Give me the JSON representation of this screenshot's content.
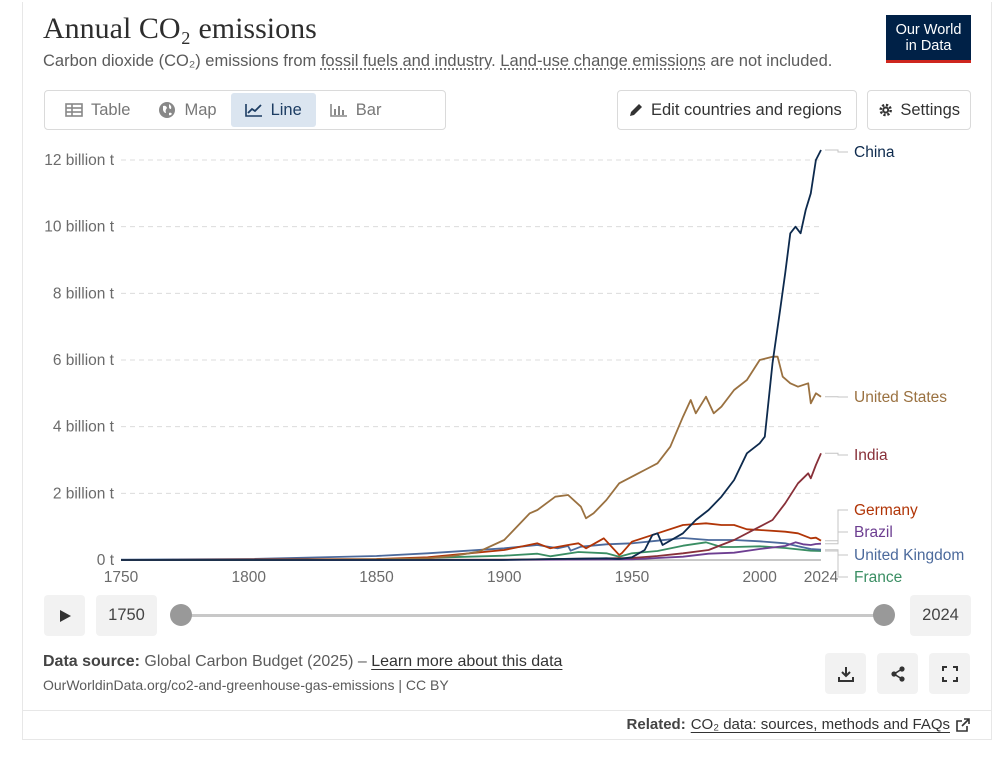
{
  "header": {
    "title": "Annual CO₂ emissions",
    "subtitle_prefix": "Carbon dioxide (CO₂) emissions from ",
    "subtitle_link1": "fossil fuels and industry",
    "subtitle_mid": ". ",
    "subtitle_link2": "Land-use change emissions",
    "subtitle_suffix": " are not included.",
    "logo_line1": "Our World",
    "logo_line2": "in Data"
  },
  "tabs": [
    {
      "label": "Table",
      "icon": "table-icon"
    },
    {
      "label": "Map",
      "icon": "globe-icon"
    },
    {
      "label": "Line",
      "icon": "line-chart-icon",
      "active": true
    },
    {
      "label": "Bar",
      "icon": "bar-chart-icon"
    }
  ],
  "toolbar": {
    "edit_label": "Edit countries and regions",
    "settings_label": "Settings"
  },
  "timeline": {
    "start_year": "1750",
    "end_year": "2024"
  },
  "footer": {
    "source_label": "Data source:",
    "source_text": " Global Carbon Budget (2025) – ",
    "source_link": "Learn more about this data",
    "url_text": "OurWorldinData.org/co2-and-greenhouse-gas-emissions | CC BY",
    "related_label": "Related:",
    "related_link": "CO₂ data: sources, methods and FAQs"
  },
  "colors": {
    "accent": "#1d3d63",
    "logo_bg": "#002147",
    "logo_bar": "#ce261e"
  },
  "chart_data": {
    "type": "line",
    "title": "Annual CO₂ emissions",
    "xlabel": "",
    "ylabel": "",
    "xlim": [
      1750,
      2024
    ],
    "ylim": [
      0,
      12
    ],
    "y_unit": "billion t",
    "yticks": [
      {
        "value": 0,
        "label": "0 t"
      },
      {
        "value": 2,
        "label": "2 billion t"
      },
      {
        "value": 4,
        "label": "4 billion t"
      },
      {
        "value": 6,
        "label": "6 billion t"
      },
      {
        "value": 8,
        "label": "8 billion t"
      },
      {
        "value": 10,
        "label": "10 billion t"
      },
      {
        "value": 12,
        "label": "12 billion t"
      }
    ],
    "xticks": [
      "1750",
      "1800",
      "1850",
      "1900",
      "1950",
      "2000",
      "2024"
    ],
    "grid": "horizontal dashed",
    "legend": "end-of-line labels at right",
    "series": [
      {
        "name": "China",
        "color": "#0d2a4d",
        "x": [
          1750,
          1899,
          1920,
          1930,
          1940,
          1945,
          1950,
          1955,
          1958,
          1960,
          1962,
          1970,
          1975,
          1980,
          1985,
          1990,
          1995,
          2000,
          2002,
          2005,
          2008,
          2010,
          2012,
          2014,
          2016,
          2018,
          2020,
          2022,
          2024
        ],
        "y": [
          0,
          0,
          0.03,
          0.04,
          0.05,
          0.03,
          0.08,
          0.3,
          0.75,
          0.8,
          0.45,
          0.8,
          1.2,
          1.5,
          1.9,
          2.4,
          3.2,
          3.5,
          3.7,
          5.9,
          7.5,
          8.6,
          9.8,
          10.0,
          9.8,
          10.5,
          11.0,
          12.0,
          12.3
        ]
      },
      {
        "name": "United States",
        "color": "#9a7140",
        "x": [
          1750,
          1800,
          1850,
          1870,
          1880,
          1890,
          1900,
          1910,
          1913,
          1920,
          1925,
          1930,
          1932,
          1935,
          1940,
          1945,
          1950,
          1955,
          1960,
          1965,
          1970,
          1973,
          1975,
          1979,
          1982,
          1985,
          1990,
          1995,
          2000,
          2005,
          2007,
          2009,
          2012,
          2015,
          2019,
          2020,
          2022,
          2024
        ],
        "y": [
          0,
          0.001,
          0.02,
          0.05,
          0.12,
          0.25,
          0.6,
          1.4,
          1.5,
          1.9,
          1.95,
          1.6,
          1.25,
          1.4,
          1.8,
          2.3,
          2.5,
          2.7,
          2.9,
          3.4,
          4.3,
          4.8,
          4.4,
          4.9,
          4.4,
          4.6,
          5.1,
          5.4,
          6.0,
          6.1,
          6.1,
          5.5,
          5.3,
          5.2,
          5.3,
          4.7,
          5.0,
          4.9
        ]
      },
      {
        "name": "India",
        "color": "#883039",
        "x": [
          1750,
          1900,
          1950,
          1960,
          1970,
          1980,
          1990,
          2000,
          2005,
          2010,
          2015,
          2019,
          2020,
          2022,
          2024
        ],
        "y": [
          0,
          0.01,
          0.06,
          0.12,
          0.2,
          0.3,
          0.6,
          1.0,
          1.2,
          1.7,
          2.3,
          2.6,
          2.45,
          2.85,
          3.2
        ]
      },
      {
        "name": "Germany",
        "color": "#b13507",
        "x": [
          1750,
          1850,
          1870,
          1900,
          1913,
          1918,
          1925,
          1929,
          1932,
          1939,
          1945,
          1946,
          1950,
          1960,
          1970,
          1979,
          1985,
          1990,
          1995,
          2000,
          2010,
          2015,
          2020,
          2022,
          2024
        ],
        "y": [
          0,
          0.03,
          0.08,
          0.3,
          0.5,
          0.35,
          0.45,
          0.5,
          0.35,
          0.65,
          0.15,
          0.2,
          0.55,
          0.8,
          1.05,
          1.1,
          1.05,
          1.05,
          0.92,
          0.9,
          0.85,
          0.8,
          0.65,
          0.67,
          0.58
        ]
      },
      {
        "name": "Brazil",
        "color": "#6d3e91",
        "x": [
          1750,
          1900,
          1950,
          1970,
          1980,
          1990,
          2000,
          2010,
          2014,
          2017,
          2020,
          2022,
          2024
        ],
        "y": [
          0,
          0.002,
          0.02,
          0.1,
          0.19,
          0.22,
          0.33,
          0.42,
          0.53,
          0.47,
          0.45,
          0.48,
          0.49
        ]
      },
      {
        "name": "United Kingdom",
        "color": "#4c6a9c",
        "x": [
          1750,
          1800,
          1850,
          1870,
          1900,
          1913,
          1921,
          1925,
          1926,
          1930,
          1940,
          1950,
          1960,
          1970,
          1980,
          1990,
          2000,
          2010,
          2015,
          2020,
          2024
        ],
        "y": [
          0.01,
          0.03,
          0.12,
          0.2,
          0.35,
          0.45,
          0.35,
          0.42,
          0.28,
          0.4,
          0.47,
          0.5,
          0.58,
          0.66,
          0.6,
          0.6,
          0.56,
          0.5,
          0.41,
          0.33,
          0.31
        ]
      },
      {
        "name": "France",
        "color": "#3a8e63",
        "x": [
          1750,
          1850,
          1900,
          1913,
          1918,
          1929,
          1940,
          1945,
          1950,
          1960,
          1970,
          1979,
          1985,
          1990,
          2000,
          2010,
          2020,
          2024
        ],
        "y": [
          0,
          0.02,
          0.13,
          0.19,
          0.11,
          0.24,
          0.2,
          0.1,
          0.2,
          0.27,
          0.43,
          0.53,
          0.39,
          0.39,
          0.41,
          0.36,
          0.28,
          0.27
        ]
      }
    ]
  }
}
